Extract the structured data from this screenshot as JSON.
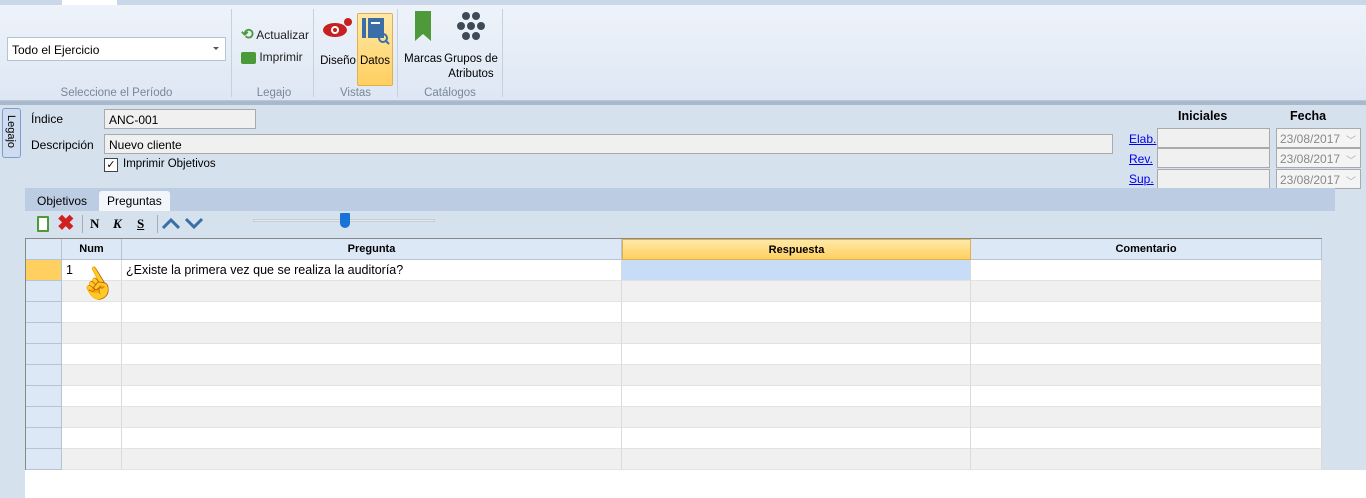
{
  "ribbon": {
    "period": {
      "value": "Todo el Ejercicio",
      "group_label": "Seleccione el Período"
    },
    "legajo": {
      "refresh_label": "Actualizar",
      "print_label": "Imprimir",
      "group_label": "Legajo"
    },
    "vistas": {
      "design_label": "Diseño",
      "data_label": "Datos",
      "group_label": "Vistas"
    },
    "catalogos": {
      "marks_label": "Marcas",
      "attr_groups_label_1": "Grupos de",
      "attr_groups_label_2": "Atributos",
      "group_label": "Catálogos"
    }
  },
  "side_tab": "Legajo",
  "form": {
    "index_label": "Índice",
    "index_value": "ANC-001",
    "desc_label": "Descripción",
    "desc_value": "Nuevo cliente",
    "print_objectives_label": "Imprimir Objetivos",
    "print_objectives_checked": true
  },
  "signoff": {
    "initials_header": "Iniciales",
    "date_header": "Fecha",
    "rows": [
      {
        "label": "Elab.",
        "initials": "",
        "date": "23/08/2017"
      },
      {
        "label": "Rev.",
        "initials": "",
        "date": "23/08/2017"
      },
      {
        "label": "Sup.",
        "initials": "",
        "date": "23/08/2017"
      }
    ]
  },
  "tabs": [
    {
      "label": "Objetivos",
      "active": false
    },
    {
      "label": "Preguntas",
      "active": true
    }
  ],
  "toolbar": {
    "bold": "N",
    "italic": "K",
    "underline": "S",
    "slider_value_percent": 50
  },
  "grid": {
    "columns": [
      "Num",
      "Pregunta",
      "Respuesta",
      "Comentario"
    ],
    "rows": [
      {
        "num": "1",
        "pregunta": "¿Existe la primera vez que se realiza la auditoría?",
        "respuesta": "",
        "comentario": ""
      }
    ],
    "empty_rows": 9
  },
  "colors": {
    "accent": "#ffcf60",
    "selected_cell": "#c6dcf7"
  }
}
